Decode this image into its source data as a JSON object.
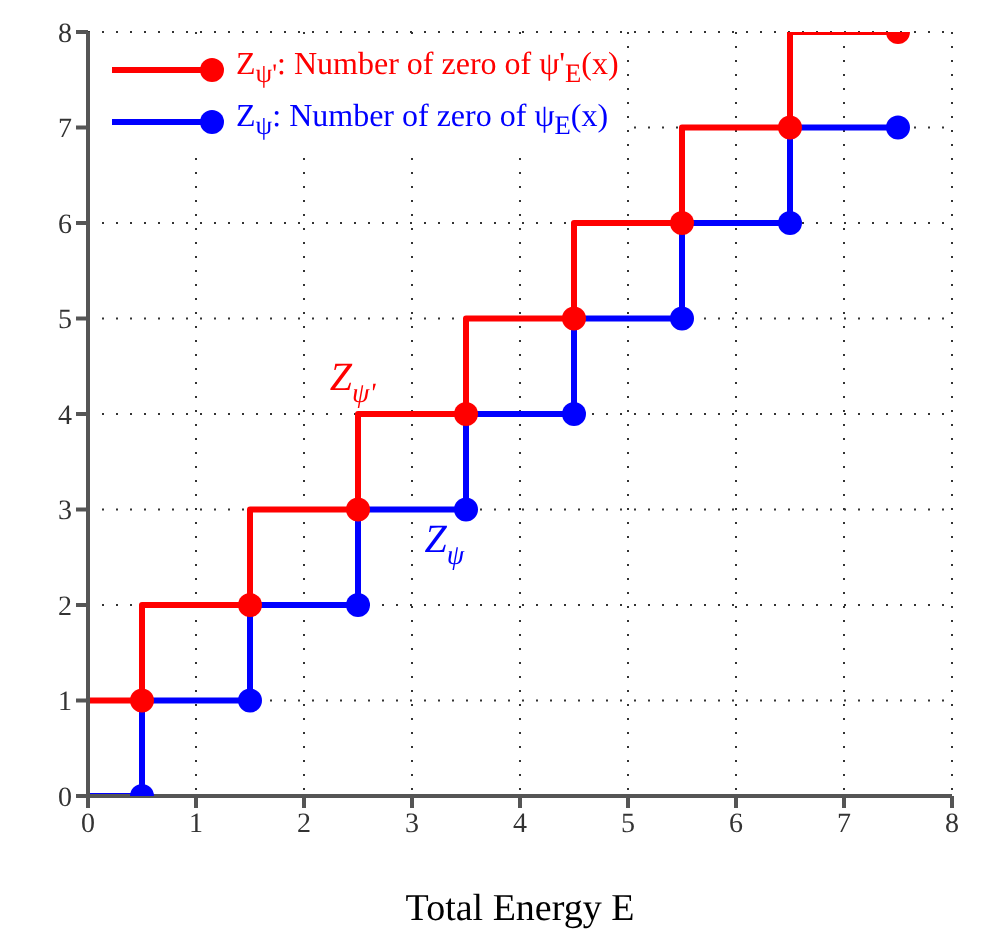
{
  "chart_data": {
    "type": "step",
    "xlabel": "Total Energy  E",
    "xlim": [
      0,
      8
    ],
    "xticks": [
      0,
      1,
      2,
      3,
      4,
      5,
      6,
      7,
      8
    ],
    "ylim": [
      0,
      8
    ],
    "yticks": [
      0,
      1,
      2,
      3,
      4,
      5,
      6,
      7,
      8
    ],
    "grid": true,
    "legend": "top left",
    "marker": "circle",
    "line_style": "solid",
    "series": [
      {
        "name": "Z$_{ψ'}$: Number of zero of  ψ'$_{E}$(x)",
        "color": "#ff0000",
        "x": [
          0,
          0.5,
          1.5,
          2.5,
          3.5,
          4.5,
          5.5,
          6.5,
          7.5
        ],
        "values": [
          1,
          1,
          2,
          3,
          4,
          5,
          6,
          7,
          8
        ]
      },
      {
        "name": "Z$_{ψ}$: Number of zero of  ψ$_{E}$(x)",
        "color": "#0000ff",
        "x": [
          0,
          0.5,
          1.5,
          2.5,
          3.5,
          4.5,
          5.5,
          6.5,
          7.5
        ],
        "values": [
          0,
          0,
          1,
          2,
          3,
          4,
          5,
          6,
          7
        ]
      }
    ],
    "annotations": [
      "Z$_{ψ'}$",
      "Z$_{ψ}$"
    ]
  }
}
